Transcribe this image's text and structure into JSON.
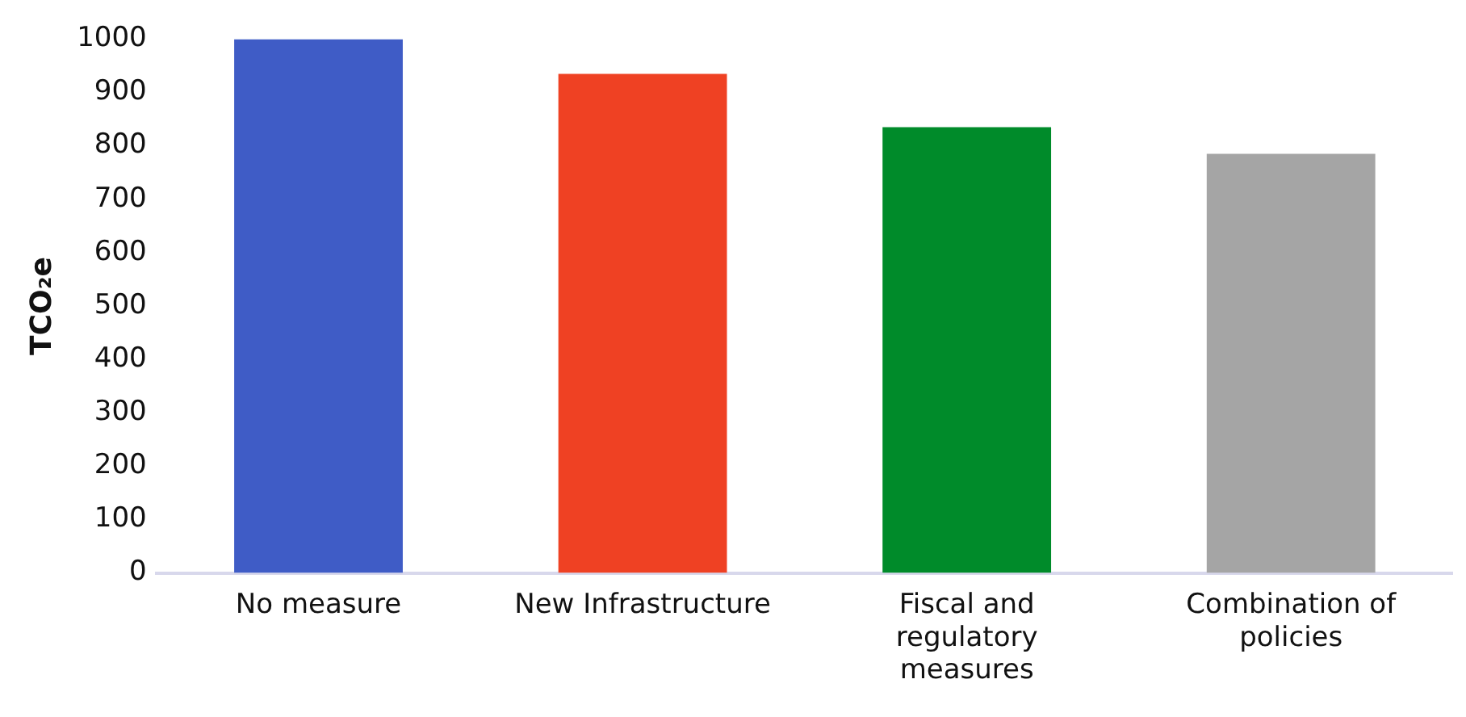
{
  "chart_data": {
    "type": "bar",
    "ylabel": "TCO₂e",
    "categories": [
      "No measure",
      "New Infrastructure",
      "Fiscal and regulatory measures",
      "Combination of policies"
    ],
    "values": [
      1000,
      935,
      835,
      785
    ],
    "colors": [
      "#3f5cc6",
      "#ef4123",
      "#008b2a",
      "#a5a5a5"
    ],
    "ylim": [
      0,
      1000
    ],
    "yticks": [
      0,
      100,
      200,
      300,
      400,
      500,
      600,
      700,
      800,
      900,
      1000
    ],
    "grid": false,
    "legend": false
  }
}
